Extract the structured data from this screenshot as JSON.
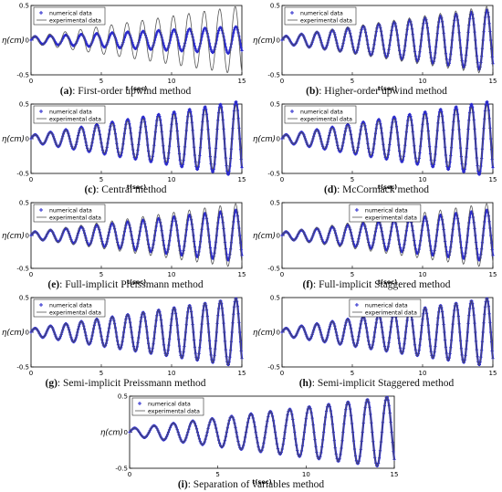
{
  "chart_data": [
    {
      "id": "a",
      "type": "line",
      "caption_letter": "(a)",
      "caption_text": ": First-order upwind method",
      "ylabel": "η(cm)",
      "xlabel": "t (sec)",
      "xlim": [
        0,
        15
      ],
      "ylim": [
        -0.5,
        0.5
      ],
      "xticks": [
        0,
        5,
        10,
        15
      ],
      "yticks": [
        -0.5,
        0,
        0.5
      ],
      "legend_position": "top-left",
      "series": [
        {
          "name": "numerical data",
          "marker": "+",
          "color": "#2b2bcc",
          "amp_start": 0.05,
          "amp_end": 0.2,
          "period": 1.1,
          "phase": 0.0
        },
        {
          "name": "experimental data",
          "style": "solid",
          "color": "#555555",
          "amp_start": 0.05,
          "amp_end": 0.5,
          "period": 1.1,
          "phase": 0.3
        }
      ]
    },
    {
      "id": "b",
      "type": "line",
      "caption_letter": "(b)",
      "caption_text": ": Higher-order upwind method",
      "ylabel": "η(cm)",
      "xlabel": "t(sec)",
      "xlim": [
        0,
        15
      ],
      "ylim": [
        -0.5,
        0.5
      ],
      "xticks": [
        0,
        5,
        10,
        15
      ],
      "yticks": [
        -0.5,
        0,
        0.5
      ],
      "legend_position": "top-left",
      "series": [
        {
          "name": "numerical data",
          "marker": "+",
          "color": "#2b2bcc",
          "amp_start": 0.05,
          "amp_end": 0.45,
          "period": 1.1,
          "phase": 0.0
        },
        {
          "name": "experimental data",
          "style": "solid",
          "color": "#555555",
          "amp_start": 0.05,
          "amp_end": 0.5,
          "period": 1.1,
          "phase": 0.1
        }
      ]
    },
    {
      "id": "c",
      "type": "line",
      "caption_letter": "(c)",
      "caption_text": ": Central method",
      "ylabel": "η(cm)",
      "xlabel": "t(sec)",
      "xlim": [
        0,
        15
      ],
      "ylim": [
        -0.5,
        0.5
      ],
      "xticks": [
        0,
        5,
        10,
        15
      ],
      "yticks": [
        -0.5,
        0,
        0.5
      ],
      "legend_position": "top-left",
      "series": [
        {
          "name": "numerical data",
          "marker": "+",
          "color": "#2b2bcc",
          "amp_start": 0.05,
          "amp_end": 0.55,
          "period": 1.1,
          "phase": 0.0
        },
        {
          "name": "experimental data",
          "style": "solid",
          "color": "#555555",
          "amp_start": 0.05,
          "amp_end": 0.5,
          "period": 1.1,
          "phase": 0.05
        }
      ]
    },
    {
      "id": "d",
      "type": "line",
      "caption_letter": "(d)",
      "caption_text": ": McCormack method",
      "ylabel": "η(cm)",
      "xlabel": "t(sec)",
      "xlim": [
        0,
        15
      ],
      "ylim": [
        -0.5,
        0.5
      ],
      "xticks": [
        0,
        5,
        10,
        15
      ],
      "yticks": [
        -0.5,
        0,
        0.5
      ],
      "legend_position": "top-left",
      "series": [
        {
          "name": "numerical data",
          "marker": "+",
          "color": "#2b2bcc",
          "amp_start": 0.05,
          "amp_end": 0.55,
          "period": 1.1,
          "phase": 0.0
        },
        {
          "name": "experimental data",
          "style": "solid",
          "color": "#555555",
          "amp_start": 0.05,
          "amp_end": 0.5,
          "period": 1.1,
          "phase": 0.05
        }
      ]
    },
    {
      "id": "e",
      "type": "line",
      "caption_letter": "(e)",
      "caption_text": ": Full-implicit Preissmann method",
      "ylabel": "η(cm)",
      "xlabel": "t(sec)",
      "xlim": [
        0,
        15
      ],
      "ylim": [
        -0.5,
        0.5
      ],
      "xticks": [
        0,
        5,
        10,
        15
      ],
      "yticks": [
        -0.5,
        0,
        0.5
      ],
      "legend_position": "top-left",
      "series": [
        {
          "name": "numerical data",
          "marker": "+",
          "color": "#2b2bcc",
          "amp_start": 0.05,
          "amp_end": 0.4,
          "period": 1.1,
          "phase": 0.0
        },
        {
          "name": "experimental data",
          "style": "solid",
          "color": "#555555",
          "amp_start": 0.05,
          "amp_end": 0.5,
          "period": 1.1,
          "phase": 0.1
        }
      ]
    },
    {
      "id": "f",
      "type": "line",
      "caption_letter": "(f)",
      "caption_text": ": Full-implicit Staggered method",
      "ylabel": "η(cm)",
      "xlabel": "t(sec)",
      "xlim": [
        0,
        15
      ],
      "ylim": [
        -0.5,
        0.5
      ],
      "xticks": [
        0,
        5,
        10,
        15
      ],
      "yticks": [
        -0.5,
        0,
        0.5
      ],
      "legend_position": "top-center",
      "series": [
        {
          "name": "numerical data",
          "marker": "+",
          "color": "#2b2bcc",
          "amp_start": 0.05,
          "amp_end": 0.4,
          "period": 1.1,
          "phase": 0.0
        },
        {
          "name": "experimental data",
          "style": "solid",
          "color": "#555555",
          "amp_start": 0.05,
          "amp_end": 0.5,
          "period": 1.1,
          "phase": 0.1
        }
      ]
    },
    {
      "id": "g",
      "type": "line",
      "caption_letter": "(g)",
      "caption_text": ": Semi-implicit Preissmann method",
      "ylabel": "η(cm)",
      "xlabel": "",
      "xlim": [
        0,
        15
      ],
      "ylim": [
        -0.5,
        0.5
      ],
      "xticks": [
        0,
        5,
        10,
        15
      ],
      "yticks": [
        -0.5,
        0,
        0.5
      ],
      "legend_position": "top-left",
      "series": [
        {
          "name": "numerical data",
          "marker": "+",
          "color": "#2b2bcc",
          "amp_start": 0.05,
          "amp_end": 0.5,
          "period": 1.1,
          "phase": 0.0
        },
        {
          "name": "experimental data",
          "style": "solid",
          "color": "#555555",
          "amp_start": 0.05,
          "amp_end": 0.5,
          "period": 1.1,
          "phase": 0.05
        }
      ]
    },
    {
      "id": "h",
      "type": "line",
      "caption_letter": "(h)",
      "caption_text": ": Semi-implicit Staggered method",
      "ylabel": "η(cm)",
      "xlabel": "",
      "xlim": [
        0,
        15
      ],
      "ylim": [
        -0.5,
        0.5
      ],
      "xticks": [
        0,
        5,
        10,
        15
      ],
      "yticks": [
        -0.5,
        0,
        0.5
      ],
      "legend_position": "top-center",
      "series": [
        {
          "name": "numerical data",
          "marker": "+",
          "color": "#2b2bcc",
          "amp_start": 0.05,
          "amp_end": 0.5,
          "period": 1.1,
          "phase": 0.0
        },
        {
          "name": "experimental data",
          "style": "solid",
          "color": "#555555",
          "amp_start": 0.05,
          "amp_end": 0.5,
          "period": 1.1,
          "phase": 0.05
        }
      ]
    },
    {
      "id": "i",
      "type": "line",
      "caption_letter": "(i)",
      "caption_text": ": Separation of variables method",
      "ylabel": "η(cm)",
      "xlabel": "t(sec)",
      "xlim": [
        0,
        15
      ],
      "ylim": [
        -0.5,
        0.5
      ],
      "xticks": [
        0,
        5,
        10,
        15
      ],
      "yticks": [
        -0.5,
        0,
        0.5
      ],
      "legend_position": "top-left",
      "series": [
        {
          "name": "numerical data",
          "marker": "+",
          "color": "#2b2bcc",
          "amp_start": 0.05,
          "amp_end": 0.5,
          "period": 1.1,
          "phase": 0.0
        },
        {
          "name": "experimental data",
          "style": "solid",
          "color": "#555555",
          "amp_start": 0.05,
          "amp_end": 0.5,
          "period": 1.1,
          "phase": 0.05
        }
      ]
    }
  ]
}
